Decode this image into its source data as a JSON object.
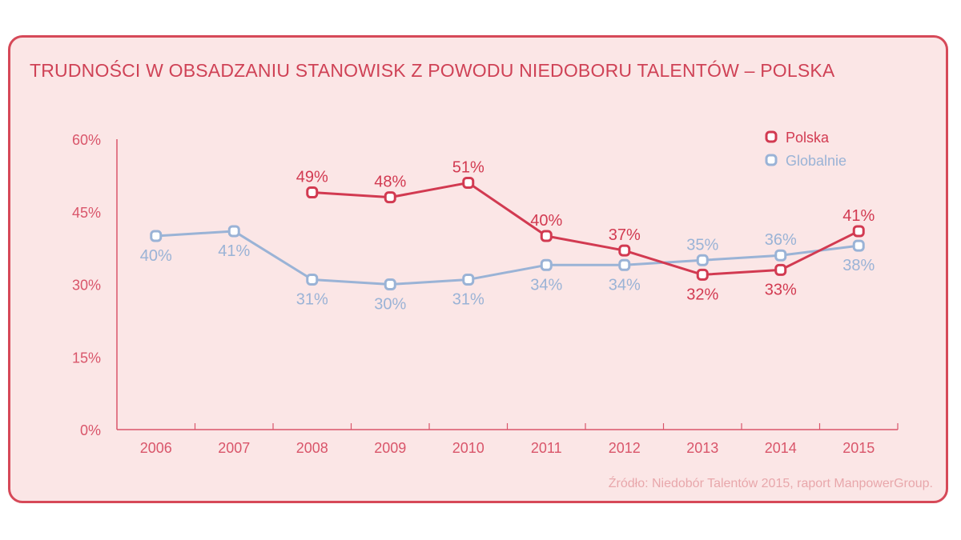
{
  "chart_data": {
    "type": "line",
    "title": "TRUDNOŚCI W OBSADZANIU STANOWISK Z POWODU NIEDOBORU TALENTÓW – POLSKA",
    "categories": [
      "2006",
      "2007",
      "2008",
      "2009",
      "2010",
      "2011",
      "2012",
      "2013",
      "2014",
      "2015"
    ],
    "ylim": [
      0,
      60
    ],
    "yticks": [
      0,
      15,
      30,
      45,
      60
    ],
    "ytick_labels": [
      "0%",
      "15%",
      "30%",
      "45%",
      "60%"
    ],
    "legend_position": "top-right",
    "series": [
      {
        "name": "Polska",
        "color": "#d23a51",
        "values": [
          null,
          null,
          49,
          48,
          51,
          40,
          37,
          32,
          33,
          41
        ],
        "labels": [
          null,
          null,
          "49%",
          "48%",
          "51%",
          "40%",
          "37%",
          "32%",
          "33%",
          "41%"
        ],
        "label_positions": [
          null,
          null,
          "above",
          "above",
          "above",
          "above",
          "above",
          "below",
          "below",
          "above"
        ]
      },
      {
        "name": "Globalnie",
        "color": "#9ab3d6",
        "values": [
          40,
          41,
          31,
          30,
          31,
          34,
          34,
          35,
          36,
          38
        ],
        "labels": [
          "40%",
          "41%",
          "31%",
          "30%",
          "31%",
          "34%",
          "34%",
          "35%",
          "36%",
          "38%"
        ],
        "label_positions": [
          "below",
          "below",
          "below",
          "below",
          "below",
          "below",
          "below",
          "above",
          "above",
          "below"
        ]
      }
    ]
  },
  "footer": {
    "source": "Źródło: Niedobór Talentów 2015, raport ManpowerGroup."
  },
  "colors": {
    "border": "#d64958",
    "background": "#fbe6e6",
    "axis": "#d9556a",
    "tick_text": "#d9556a",
    "source_text": "#e8a7ab"
  }
}
